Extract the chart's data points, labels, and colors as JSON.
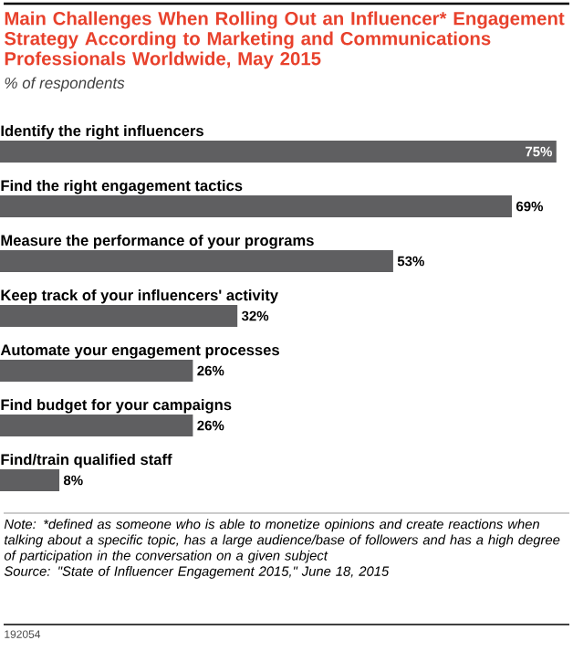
{
  "chart_data": {
    "type": "bar",
    "orientation": "horizontal",
    "title": "Main Challenges When Rolling Out an Influencer* Engagement Strategy According to Marketing and Communications Professionals Worldwide, May 2015",
    "subtitle": "% of respondents",
    "categories": [
      "Identify the right influencers",
      "Find the right engagement tactics",
      "Measure the performance of your programs",
      "Keep track of your influencers' activity",
      "Automate your engagement processes",
      "Find budget for your campaigns",
      "Find/train qualified staff"
    ],
    "values": [
      75,
      69,
      53,
      32,
      26,
      26,
      8
    ],
    "value_labels": [
      "75%",
      "69%",
      "53%",
      "32%",
      "26%",
      "26%",
      "8%"
    ],
    "color": "#5f5f61",
    "annotations": [
      "Note: *defined as someone who is able to monetize opinions and create reactions when talking about a specific topic, has a large audience/base of followers and has a high degree of participation in the conversation on a given subject",
      "Source: \"State of Influencer Engagement 2015,\" June 18, 2015",
      "192054"
    ]
  }
}
